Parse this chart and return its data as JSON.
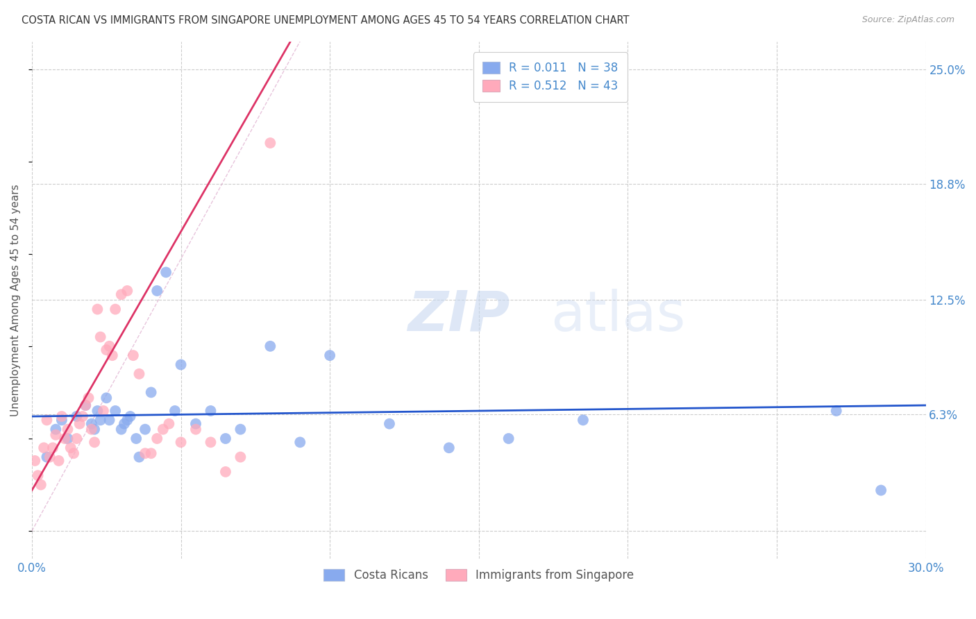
{
  "title": "COSTA RICAN VS IMMIGRANTS FROM SINGAPORE UNEMPLOYMENT AMONG AGES 45 TO 54 YEARS CORRELATION CHART",
  "source": "Source: ZipAtlas.com",
  "ylabel": "Unemployment Among Ages 45 to 54 years",
  "xlim": [
    0,
    0.3
  ],
  "ylim": [
    -0.015,
    0.265
  ],
  "grid_color": "#cccccc",
  "background_color": "#ffffff",
  "watermark_zip": "ZIP",
  "watermark_atlas": "atlas",
  "color_blue": "#88aaee",
  "color_pink": "#ffaabb",
  "color_blue_line": "#2255cc",
  "color_pink_line": "#dd3366",
  "color_ref_line": "#ddaacc",
  "blue_scatter_x": [
    0.005,
    0.008,
    0.01,
    0.012,
    0.015,
    0.018,
    0.02,
    0.021,
    0.022,
    0.023,
    0.025,
    0.026,
    0.028,
    0.03,
    0.031,
    0.032,
    0.033,
    0.035,
    0.036,
    0.038,
    0.04,
    0.042,
    0.045,
    0.048,
    0.05,
    0.055,
    0.06,
    0.065,
    0.07,
    0.08,
    0.09,
    0.1,
    0.12,
    0.14,
    0.16,
    0.185,
    0.27,
    0.285
  ],
  "blue_scatter_y": [
    0.04,
    0.055,
    0.06,
    0.05,
    0.062,
    0.068,
    0.058,
    0.055,
    0.065,
    0.06,
    0.072,
    0.06,
    0.065,
    0.055,
    0.058,
    0.06,
    0.062,
    0.05,
    0.04,
    0.055,
    0.075,
    0.13,
    0.14,
    0.065,
    0.09,
    0.058,
    0.065,
    0.05,
    0.055,
    0.1,
    0.048,
    0.095,
    0.058,
    0.045,
    0.05,
    0.06,
    0.065,
    0.022
  ],
  "pink_scatter_x": [
    0.001,
    0.002,
    0.003,
    0.004,
    0.005,
    0.006,
    0.007,
    0.008,
    0.009,
    0.01,
    0.011,
    0.012,
    0.013,
    0.014,
    0.015,
    0.016,
    0.017,
    0.018,
    0.019,
    0.02,
    0.021,
    0.022,
    0.023,
    0.024,
    0.025,
    0.026,
    0.027,
    0.028,
    0.03,
    0.032,
    0.034,
    0.036,
    0.038,
    0.04,
    0.042,
    0.044,
    0.046,
    0.05,
    0.055,
    0.06,
    0.065,
    0.07,
    0.08
  ],
  "pink_scatter_y": [
    0.038,
    0.03,
    0.025,
    0.045,
    0.06,
    0.04,
    0.045,
    0.052,
    0.038,
    0.062,
    0.05,
    0.055,
    0.045,
    0.042,
    0.05,
    0.058,
    0.062,
    0.068,
    0.072,
    0.055,
    0.048,
    0.12,
    0.105,
    0.065,
    0.098,
    0.1,
    0.095,
    0.12,
    0.128,
    0.13,
    0.095,
    0.085,
    0.042,
    0.042,
    0.05,
    0.055,
    0.058,
    0.048,
    0.055,
    0.048,
    0.032,
    0.04,
    0.21
  ],
  "blue_reg_slope": 0.02,
  "blue_reg_intercept": 0.062,
  "pink_reg_slope": 2.8,
  "pink_reg_intercept": 0.022
}
